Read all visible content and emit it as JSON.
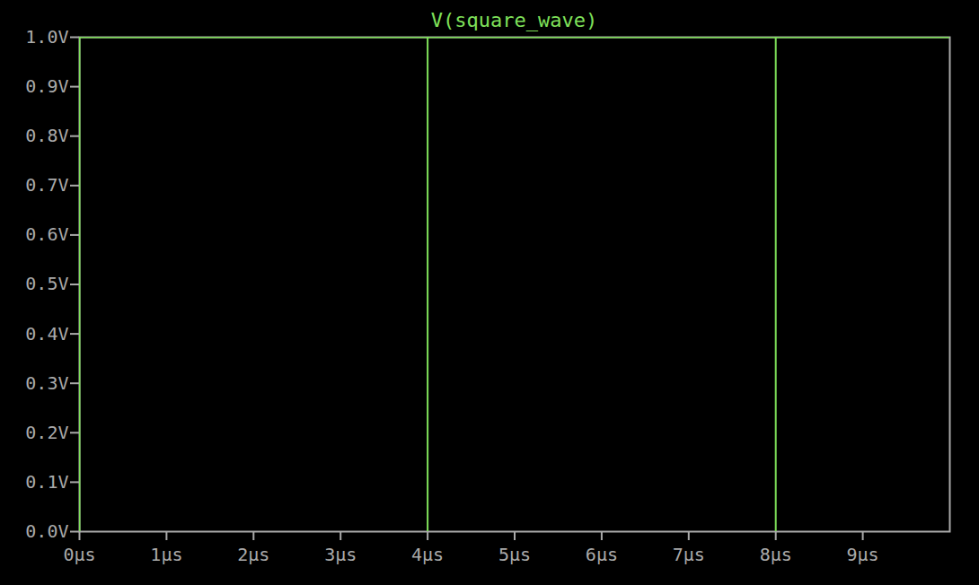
{
  "chart_data": {
    "type": "line",
    "title": "V(square_wave)",
    "x": [
      0,
      0,
      4,
      4,
      4,
      8,
      8,
      8,
      10
    ],
    "values": [
      0,
      1,
      1,
      0,
      1,
      1,
      0,
      1,
      1
    ],
    "color": "#7fe05a",
    "xlim": [
      0,
      10
    ],
    "xticks": [
      {
        "value": 0,
        "label": "0µs"
      },
      {
        "value": 1,
        "label": "1µs"
      },
      {
        "value": 2,
        "label": "2µs"
      },
      {
        "value": 3,
        "label": "3µs"
      },
      {
        "value": 4,
        "label": "4µs"
      },
      {
        "value": 5,
        "label": "5µs"
      },
      {
        "value": 6,
        "label": "6µs"
      },
      {
        "value": 7,
        "label": "7µs"
      },
      {
        "value": 8,
        "label": "8µs"
      },
      {
        "value": 9,
        "label": "9µs"
      }
    ],
    "ylim": [
      0,
      1
    ],
    "yticks": [
      {
        "value": 0,
        "label": "0.0V"
      },
      {
        "value": 0.1,
        "label": "0.1V"
      },
      {
        "value": 0.2,
        "label": "0.2V"
      },
      {
        "value": 0.3,
        "label": "0.3V"
      },
      {
        "value": 0.4,
        "label": "0.4V"
      },
      {
        "value": 0.5,
        "label": "0.5V"
      },
      {
        "value": 0.6,
        "label": "0.6V"
      },
      {
        "value": 0.7,
        "label": "0.7V"
      },
      {
        "value": 0.8,
        "label": "0.8V"
      },
      {
        "value": 0.9,
        "label": "0.9V"
      },
      {
        "value": 1,
        "label": "1.0V"
      }
    ],
    "grid": false
  }
}
